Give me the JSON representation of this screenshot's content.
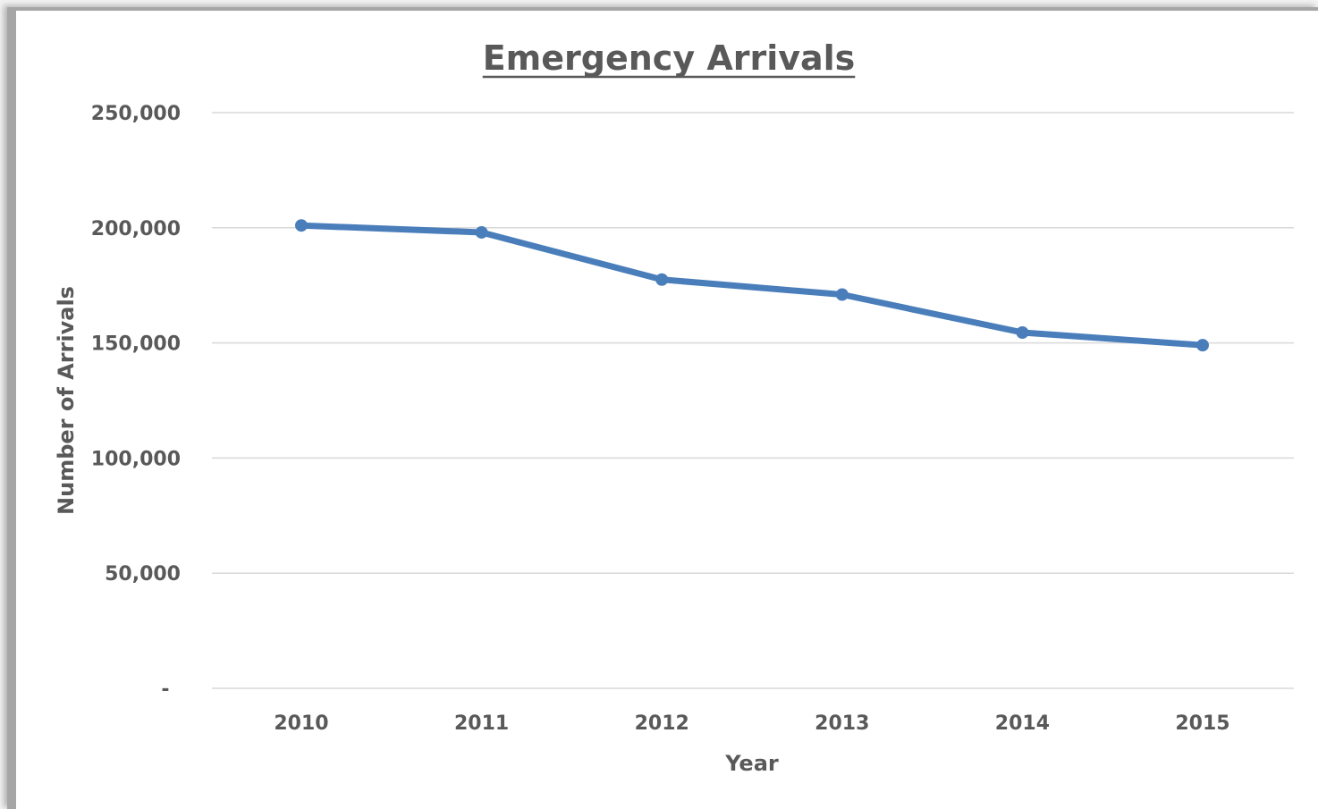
{
  "chart_data": {
    "type": "line",
    "title": "Emergency Arrivals",
    "xlabel": "Year",
    "ylabel": "Number of Arrivals",
    "categories": [
      "2010",
      "2011",
      "2012",
      "2013",
      "2014",
      "2015"
    ],
    "series": [
      {
        "values": [
          201000,
          198000,
          177500,
          171000,
          154500,
          149000
        ],
        "color": "#4a7ebb"
      }
    ],
    "ylim": [
      0,
      250000
    ],
    "yticks": [
      0,
      50000,
      100000,
      150000,
      200000,
      250000
    ],
    "ytick_labels": [
      "-",
      "50,000",
      "100,000",
      "150,000",
      "200,000",
      "250,000"
    ],
    "grid": true,
    "grid_color": "#d9d9d9",
    "text_color": "#595959"
  }
}
